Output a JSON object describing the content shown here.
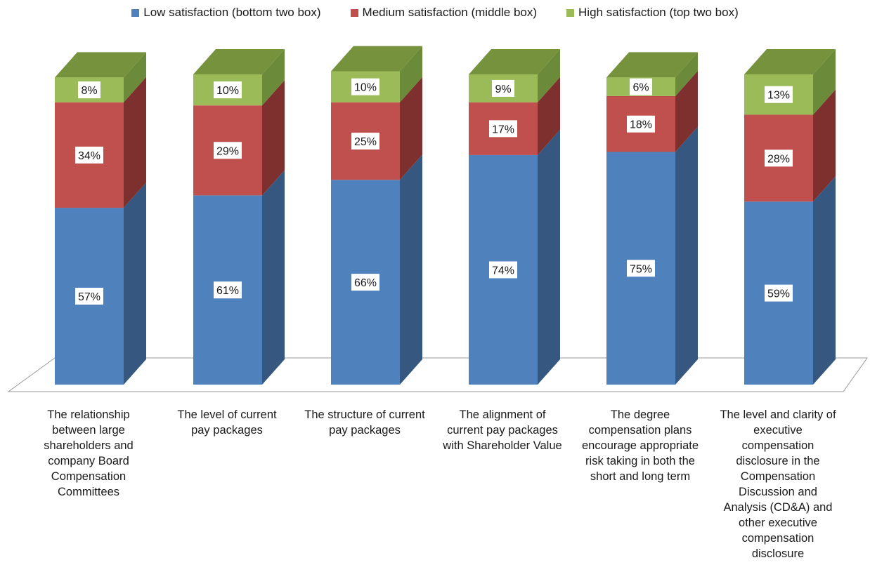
{
  "chart_data": {
    "type": "bar",
    "stacked": true,
    "three_d": true,
    "title": "",
    "xlabel": "",
    "ylabel": "",
    "ylim": [
      0,
      100
    ],
    "legend_position": "top",
    "grid": false,
    "categories": [
      "The relationship between large shareholders and company Board Compensation Committees",
      "The level of current pay packages",
      "The structure of current pay packages",
      "The alignment of current pay packages with Shareholder Value",
      "The degree compensation plans encourage appropriate risk taking in both the short and long term",
      "The level and clarity of executive compensation disclosure in the Compensation Discussion and Analysis (CD&A) and other executive compensation disclosure"
    ],
    "series": [
      {
        "name": "Low satisfaction (bottom two box)",
        "color": "#4f81bd",
        "side_color": "#36577f",
        "values": [
          57,
          61,
          66,
          74,
          75,
          59
        ],
        "labels": [
          "57%",
          "61%",
          "66%",
          "74%",
          "75%",
          "59%"
        ]
      },
      {
        "name": "Medium satisfaction (middle box)",
        "color": "#c0504d",
        "side_color": "#7d302e",
        "values": [
          34,
          29,
          25,
          17,
          18,
          28
        ],
        "labels": [
          "34%",
          "29%",
          "25%",
          "17%",
          "18%",
          "28%"
        ]
      },
      {
        "name": "High satisfaction (top two box)",
        "color": "#9bbb59",
        "side_color": "#6b8a3a",
        "top_color": "#76923c",
        "values": [
          8,
          10,
          10,
          9,
          6,
          13
        ],
        "labels": [
          "8%",
          "10%",
          "10%",
          "9%",
          "6%",
          "13%"
        ]
      }
    ]
  }
}
